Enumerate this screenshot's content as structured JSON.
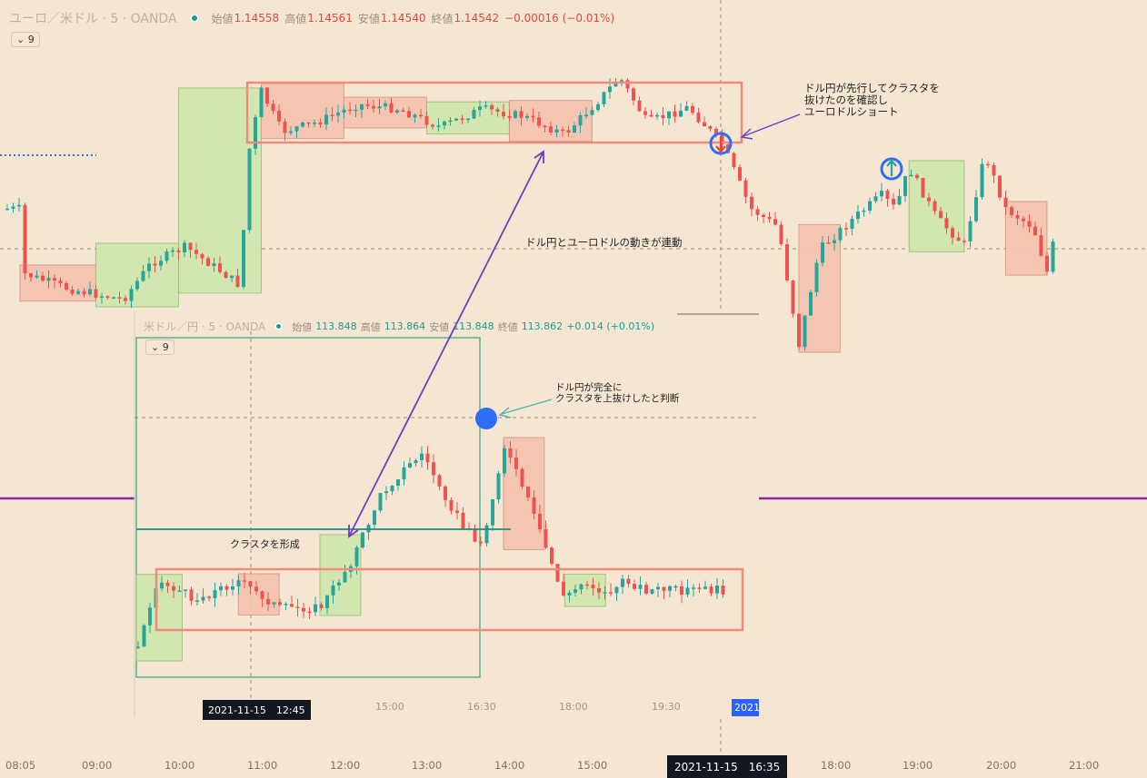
{
  "main": {
    "symbol": "ユーロ／米ドル · 5 · OANDA",
    "ohlc": [
      {
        "label": "始値",
        "value": "1.14558"
      },
      {
        "label": "高値",
        "value": "1.14561"
      },
      {
        "label": "安値",
        "value": "1.14540"
      },
      {
        "label": "終値",
        "value": "1.14542"
      }
    ],
    "change": "−0.00016 (−0.01%)",
    "indicator_count": "9",
    "price_color": "#e0493c",
    "x_labels": [
      "08:05",
      "09:00",
      "10:00",
      "11:00",
      "12:00",
      "13:00",
      "14:00",
      "15:00",
      "18:00",
      "19:00",
      "20:00",
      "21:00"
    ],
    "crosshair_time": "2021-11-15　16:35"
  },
  "inset": {
    "symbol": "米ドル／円 · 5 · OANDA",
    "ohlc": [
      {
        "label": "始値",
        "value": "113.848"
      },
      {
        "label": "高値",
        "value": "113.864"
      },
      {
        "label": "安値",
        "value": "113.848"
      },
      {
        "label": "終値",
        "value": "113.862"
      }
    ],
    "change": "+0.014 (+0.01%)",
    "indicator_count": "9",
    "price_color": "#1c9c8c",
    "x_labels": [
      "15:00",
      "16:30",
      "18:00",
      "19:30"
    ],
    "crosshair_time": "2021-11-15　12:45",
    "right_badge": "2021-"
  },
  "annotations": {
    "eurusd_short": "ドル円が先行してクラスタを\n抜けたのを確認し\nユーロドルショート",
    "linked": "ドル円とユーロドルの動きが連動",
    "usdjpy_breakout": "ドル円が完全に\nクラスタを上抜けしたと判断",
    "cluster": "クラスタを形成"
  },
  "colors": {
    "background": "#f4e6d2",
    "up_candle": "#26a69a",
    "down_candle": "#ef5350",
    "up_box": "#cfe6ad",
    "down_box": "#f5c2ae",
    "cluster_frame": "#f08a7a",
    "annotation_arrow": "#6a3fc0",
    "purple_line": "#8e24aa",
    "blue_marker": "#2f6df6"
  },
  "icons": [
    "chevron-down-icon",
    "status-dot-icon",
    "arrow-down-icon",
    "arrow-up-icon"
  ],
  "chart_data": [
    {
      "type": "candlestick",
      "title": "ユーロ／米ドル · 5 · OANDA",
      "x_ticks": [
        "08:05",
        "09:00",
        "10:00",
        "11:00",
        "12:00",
        "13:00",
        "14:00",
        "15:00",
        "18:00",
        "19:00",
        "20:00",
        "21:00"
      ],
      "last": {
        "open": 1.14558,
        "high": 1.14561,
        "low": 1.1454,
        "close": 1.14542
      },
      "path": [
        [
          "08:05",
          300
        ],
        [
          "08:40",
          318
        ],
        [
          "09:20",
          330
        ],
        [
          "09:40",
          290
        ],
        [
          "10:05",
          272
        ],
        [
          "10:30",
          298
        ],
        [
          "10:45",
          315
        ],
        [
          "10:50",
          175
        ],
        [
          "11:00",
          100
        ],
        [
          "11:15",
          145
        ],
        [
          "11:40",
          135
        ],
        [
          "12:10",
          115
        ],
        [
          "12:40",
          120
        ],
        [
          "13:10",
          140
        ],
        [
          "13:40",
          120
        ],
        [
          "14:10",
          128
        ],
        [
          "14:40",
          148
        ],
        [
          "15:05",
          110
        ],
        [
          "15:20",
          85
        ],
        [
          "15:40",
          135
        ],
        [
          "16:10",
          118
        ],
        [
          "16:35",
          160
        ],
        [
          "16:55",
          230
        ],
        [
          "17:15",
          250
        ],
        [
          "17:30",
          380
        ],
        [
          "17:45",
          275
        ],
        [
          "18:10",
          240
        ],
        [
          "18:30",
          215
        ],
        [
          "18:40",
          230
        ],
        [
          "18:50",
          185
        ],
        [
          "19:10",
          240
        ],
        [
          "19:30",
          270
        ],
        [
          "19:45",
          170
        ],
        [
          "20:00",
          230
        ],
        [
          "20:20",
          250
        ],
        [
          "20:30",
          300
        ],
        [
          "20:40",
          230
        ]
      ],
      "boxes": [
        {
          "from": "08:05",
          "to": "09:00",
          "kind": "down"
        },
        {
          "from": "09:00",
          "to": "10:00",
          "kind": "up"
        },
        {
          "from": "10:00",
          "to": "11:00",
          "kind": "up"
        },
        {
          "from": "11:00",
          "to": "12:00",
          "kind": "down"
        },
        {
          "from": "12:00",
          "to": "13:00",
          "kind": "down"
        },
        {
          "from": "13:00",
          "to": "14:00",
          "kind": "up"
        },
        {
          "from": "14:00",
          "to": "15:00",
          "kind": "down"
        },
        {
          "from": "17:30",
          "to": "18:00",
          "kind": "down"
        },
        {
          "from": "18:50",
          "to": "19:30",
          "kind": "up"
        },
        {
          "from": "20:00",
          "to": "20:30",
          "kind": "down"
        }
      ]
    },
    {
      "type": "candlestick",
      "title": "米ドル／円 · 5 · OANDA",
      "x_ticks": [
        "15:00",
        "16:30",
        "18:00",
        "19:30"
      ],
      "last": {
        "open": 113.848,
        "high": 113.864,
        "low": 113.848,
        "close": 113.862
      },
      "path": [
        [
          "12:00",
          720
        ],
        [
          "12:20",
          640
        ],
        [
          "13:00",
          660
        ],
        [
          "13:40",
          640
        ],
        [
          "14:20",
          670
        ],
        [
          "15:00",
          670
        ],
        [
          "15:30",
          620
        ],
        [
          "16:00",
          545
        ],
        [
          "16:20",
          520
        ],
        [
          "16:40",
          500
        ],
        [
          "17:00",
          540
        ],
        [
          "17:20",
          580
        ],
        [
          "17:40",
          600
        ],
        [
          "18:00",
          490
        ],
        [
          "18:20",
          540
        ],
        [
          "18:40",
          600
        ],
        [
          "19:00",
          660
        ],
        [
          "19:20",
          640
        ],
        [
          "19:40",
          655
        ],
        [
          "20:00",
          640
        ],
        [
          "20:20",
          650
        ]
      ],
      "boxes": [
        {
          "from": "12:00",
          "to": "12:45",
          "kind": "up"
        },
        {
          "from": "13:40",
          "to": "14:20",
          "kind": "down"
        },
        {
          "from": "15:00",
          "to": "15:40",
          "kind": "up"
        },
        {
          "from": "18:00",
          "to": "18:40",
          "kind": "down"
        },
        {
          "from": "19:00",
          "to": "19:40",
          "kind": "up"
        }
      ]
    }
  ]
}
